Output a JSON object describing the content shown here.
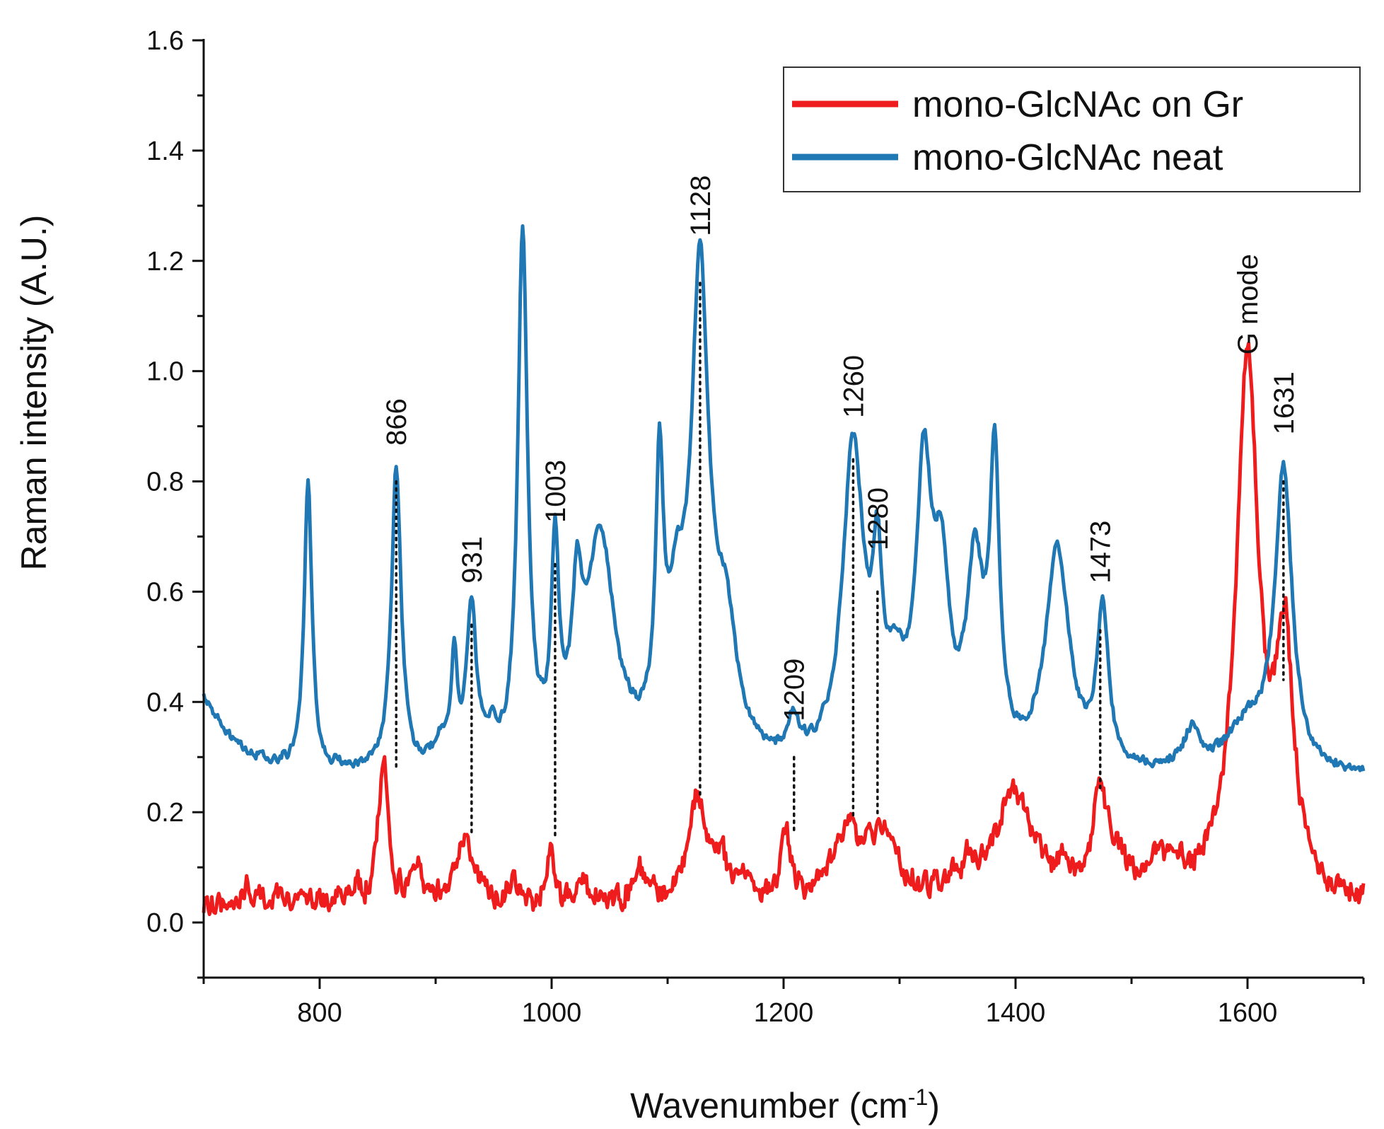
{
  "chart_data": {
    "type": "line",
    "title": "",
    "xlabel": "Wavenumber (cm",
    "xlabel_sup": "-1",
    "xlabel_end": ")",
    "ylabel": "Raman intensity (A.U.)",
    "xlim": [
      700,
      1700
    ],
    "ylim": [
      -0.1,
      1.6
    ],
    "xticks": [
      800,
      1000,
      1200,
      1400,
      1600
    ],
    "xtick_labels": [
      "800",
      "1000",
      "1200",
      "1400",
      "1600"
    ],
    "yticks": [
      0.0,
      0.2,
      0.4,
      0.6,
      0.8,
      1.0,
      1.2,
      1.4,
      1.6
    ],
    "ytick_labels": [
      "0.0",
      "0.2",
      "0.4",
      "0.6",
      "0.8",
      "1.0",
      "1.2",
      "1.4",
      "1.6"
    ],
    "legend_position": "top-right",
    "series": [
      {
        "name": "mono-GlcNAc on Gr",
        "color": "#ee1c1c",
        "baseline": 0.03,
        "noise": 0.018,
        "peaks": [
          {
            "x": 738,
            "h": 0.03,
            "w": 6
          },
          {
            "x": 768,
            "h": 0.02,
            "w": 6
          },
          {
            "x": 830,
            "h": 0.03,
            "w": 6
          },
          {
            "x": 855,
            "h": 0.26,
            "w": 5
          },
          {
            "x": 884,
            "h": 0.05,
            "w": 6
          },
          {
            "x": 925,
            "h": 0.11,
            "w": 11
          },
          {
            "x": 968,
            "h": 0.03,
            "w": 5
          },
          {
            "x": 999,
            "h": 0.11,
            "w": 3
          },
          {
            "x": 1025,
            "h": 0.04,
            "w": 8
          },
          {
            "x": 1075,
            "h": 0.06,
            "w": 5
          },
          {
            "x": 1085,
            "h": 0.03,
            "w": 5
          },
          {
            "x": 1125,
            "h": 0.18,
            "w": 9
          },
          {
            "x": 1145,
            "h": 0.07,
            "w": 9
          },
          {
            "x": 1165,
            "h": 0.04,
            "w": 6
          },
          {
            "x": 1202,
            "h": 0.12,
            "w": 5
          },
          {
            "x": 1255,
            "h": 0.12,
            "w": 14
          },
          {
            "x": 1285,
            "h": 0.12,
            "w": 14
          },
          {
            "x": 1345,
            "h": 0.03,
            "w": 5
          },
          {
            "x": 1360,
            "h": 0.04,
            "w": 5
          },
          {
            "x": 1398,
            "h": 0.2,
            "w": 20
          },
          {
            "x": 1440,
            "h": 0.03,
            "w": 5
          },
          {
            "x": 1473,
            "h": 0.19,
            "w": 7
          },
          {
            "x": 1488,
            "h": 0.06,
            "w": 10
          },
          {
            "x": 1520,
            "h": 0.05,
            "w": 6
          },
          {
            "x": 1538,
            "h": 0.05,
            "w": 12
          },
          {
            "x": 1600,
            "h": 0.97,
            "w": 12
          },
          {
            "x": 1632,
            "h": 0.43,
            "w": 9
          }
        ]
      },
      {
        "name": "mono-GlcNAc neat",
        "color": "#1f77b4",
        "baseline": 0.26,
        "noise": 0.007,
        "peaks": [
          {
            "x": 690,
            "h": 0.16,
            "w": 30
          },
          {
            "x": 790,
            "h": 0.52,
            "w": 4
          },
          {
            "x": 866,
            "h": 0.55,
            "w": 5
          },
          {
            "x": 905,
            "h": 0.04,
            "w": 8
          },
          {
            "x": 916,
            "h": 0.19,
            "w": 3
          },
          {
            "x": 931,
            "h": 0.29,
            "w": 5
          },
          {
            "x": 948,
            "h": 0.04,
            "w": 5
          },
          {
            "x": 975,
            "h": 0.96,
            "w": 5
          },
          {
            "x": 1003,
            "h": 0.36,
            "w": 4
          },
          {
            "x": 1022,
            "h": 0.24,
            "w": 5
          },
          {
            "x": 1042,
            "h": 0.41,
            "w": 15
          },
          {
            "x": 1093,
            "h": 0.47,
            "w": 4
          },
          {
            "x": 1108,
            "h": 0.22,
            "w": 10
          },
          {
            "x": 1128,
            "h": 0.85,
            "w": 9
          },
          {
            "x": 1150,
            "h": 0.22,
            "w": 12
          },
          {
            "x": 1209,
            "h": 0.07,
            "w": 5
          },
          {
            "x": 1260,
            "h": 0.58,
            "w": 11
          },
          {
            "x": 1281,
            "h": 0.28,
            "w": 5
          },
          {
            "x": 1297,
            "h": 0.12,
            "w": 10
          },
          {
            "x": 1321,
            "h": 0.5,
            "w": 8
          },
          {
            "x": 1336,
            "h": 0.3,
            "w": 8
          },
          {
            "x": 1365,
            "h": 0.34,
            "w": 9
          },
          {
            "x": 1382,
            "h": 0.52,
            "w": 5
          },
          {
            "x": 1436,
            "h": 0.4,
            "w": 12
          },
          {
            "x": 1475,
            "h": 0.28,
            "w": 6
          },
          {
            "x": 1552,
            "h": 0.07,
            "w": 8
          },
          {
            "x": 1600,
            "h": 0.08,
            "w": 22
          },
          {
            "x": 1631,
            "h": 0.54,
            "w": 9
          }
        ]
      }
    ],
    "annotations": [
      {
        "text": "866",
        "x": 866,
        "y_top": 0.8,
        "y_bottom": 0.28,
        "label_y": 0.865
      },
      {
        "text": "931",
        "x": 931,
        "y_top": 0.54,
        "y_bottom": 0.16,
        "label_y": 0.615
      },
      {
        "text": "1003",
        "x": 1003,
        "y_top": 0.65,
        "y_bottom": 0.15,
        "label_y": 0.725
      },
      {
        "text": "1128",
        "x": 1128,
        "y_top": 1.16,
        "y_bottom": 0.23,
        "label_y": 1.245
      },
      {
        "text": "1209",
        "x": 1209,
        "y_top": 0.3,
        "y_bottom": 0.16,
        "label_y": 0.365
      },
      {
        "text": "1260",
        "x": 1260,
        "y_top": 0.84,
        "y_bottom": 0.19,
        "label_y": 0.915
      },
      {
        "text": "1280",
        "x": 1281,
        "y_top": 0.6,
        "y_bottom": 0.19,
        "label_y": 0.675
      },
      {
        "text": "1473",
        "x": 1473,
        "y_top": 0.53,
        "y_bottom": 0.24,
        "label_y": 0.615
      },
      {
        "text": "G mode",
        "x": 1600,
        "y_top": null,
        "y_bottom": null,
        "label_y": 1.03
      },
      {
        "text": "1631",
        "x": 1631,
        "y_top": 0.8,
        "y_bottom": 0.44,
        "label_y": 0.885
      }
    ]
  }
}
